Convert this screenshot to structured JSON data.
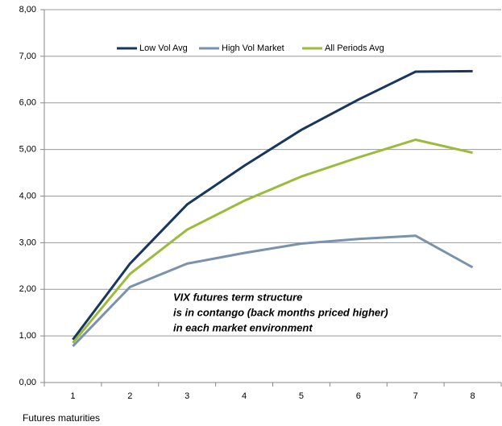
{
  "chart_data": {
    "type": "line",
    "x_label": "Futures maturities",
    "categories": [
      "1",
      "2",
      "3",
      "4",
      "5",
      "6",
      "7",
      "8"
    ],
    "series": [
      {
        "name": "Low Vol Avg",
        "color": "#17375e",
        "values": [
          0.92,
          2.55,
          3.82,
          4.65,
          5.42,
          6.07,
          6.67,
          6.68
        ]
      },
      {
        "name": "High Vol Market",
        "color": "#7a92ae",
        "values": [
          0.78,
          2.05,
          2.55,
          2.78,
          2.98,
          3.08,
          3.15,
          2.47
        ]
      },
      {
        "name": "All Periods Avg",
        "color": "#9bbb3b",
        "values": [
          0.85,
          2.33,
          3.28,
          3.9,
          4.42,
          4.83,
          5.21,
          4.93
        ]
      }
    ],
    "ylim": [
      0,
      8
    ],
    "yticks": [
      {
        "value": 0,
        "label": "0,00"
      },
      {
        "value": 1,
        "label": "1,00"
      },
      {
        "value": 2,
        "label": "2,00"
      },
      {
        "value": 3,
        "label": "3,00"
      },
      {
        "value": 4,
        "label": "4,00"
      },
      {
        "value": 5,
        "label": "5,00"
      },
      {
        "value": 6,
        "label": "6,00"
      },
      {
        "value": 7,
        "label": "7,00"
      },
      {
        "value": 8,
        "label": "8,00"
      }
    ],
    "grid": true,
    "legend": "top",
    "annotation": [
      "VIX futures term structure",
      "is in contango (back months priced higher)",
      "in each market environment"
    ]
  }
}
